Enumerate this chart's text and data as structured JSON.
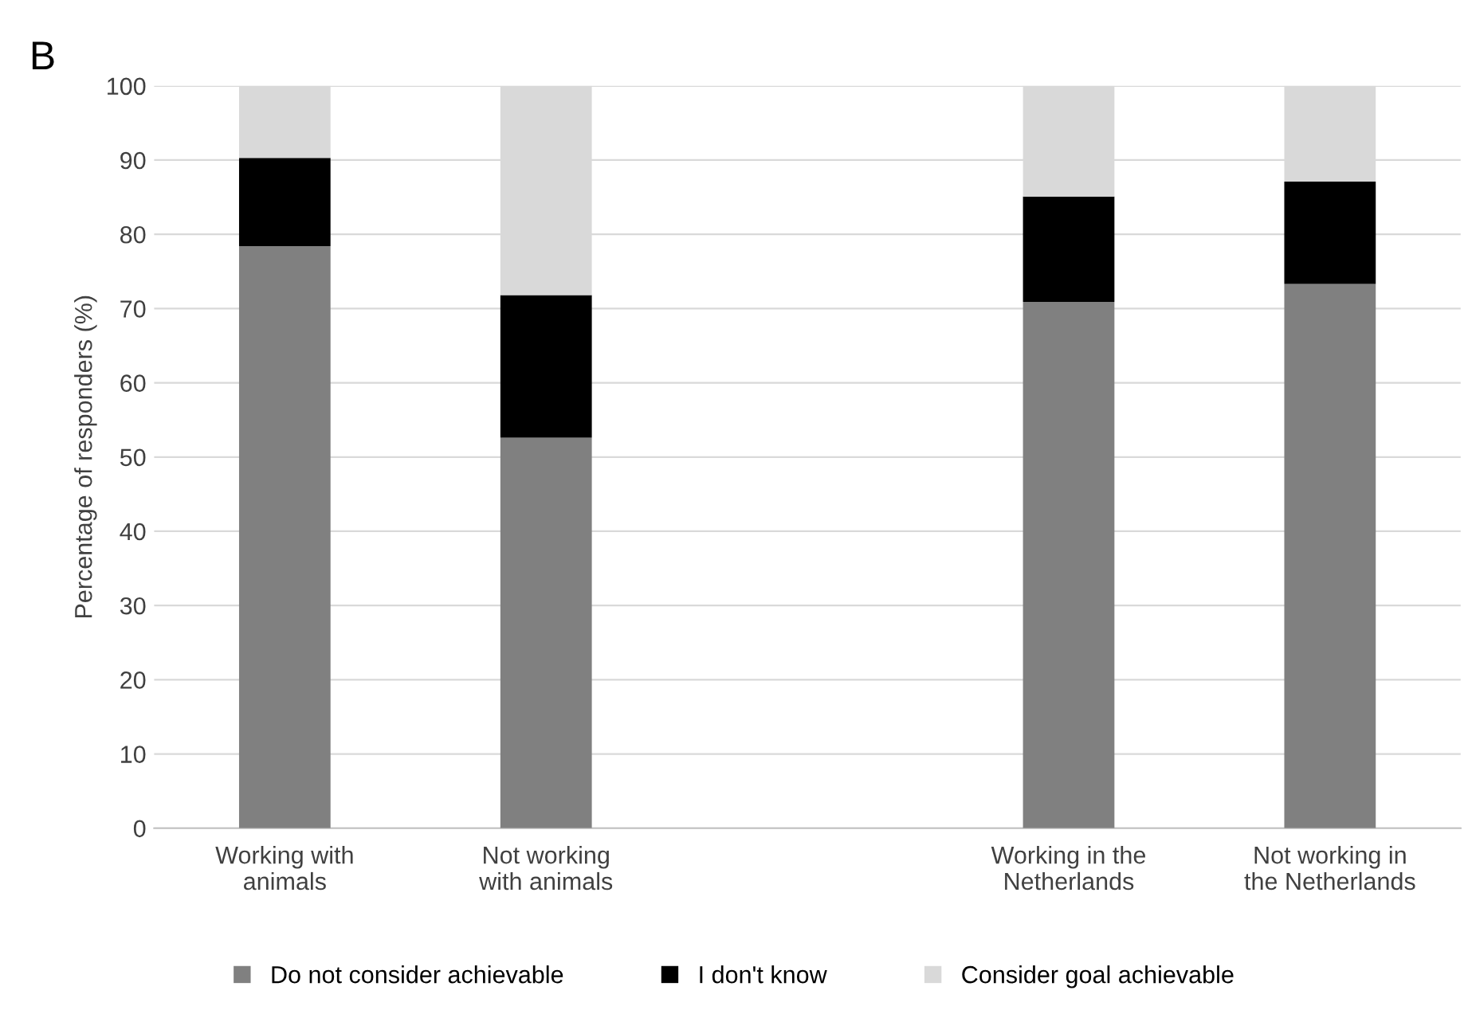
{
  "chart_data": {
    "type": "bar",
    "title": "B",
    "ylabel": "Percentage of responders (%)",
    "categories": [
      "Working with\nanimals",
      "Not working\nwith animals",
      null,
      "Working in the\nNetherlands",
      "Not working in\nthe Netherlands"
    ],
    "stacked": true,
    "series": [
      {
        "name": "Do not consider achievable",
        "color": "#808080",
        "values": [
          78.4,
          52.6,
          null,
          70.9,
          73.3
        ]
      },
      {
        "name": "I don't know",
        "color": "#000000",
        "values": [
          11.9,
          19.2,
          null,
          14.2,
          13.8
        ]
      },
      {
        "name": "Consider goal achievable",
        "color": "#d9d9d9",
        "values": [
          9.7,
          28.2,
          null,
          14.9,
          12.9
        ]
      }
    ],
    "ylim": [
      0,
      100
    ],
    "yticks": [
      0,
      10,
      20,
      30,
      40,
      50,
      60,
      70,
      80,
      90,
      100
    ],
    "grid": "y",
    "legend": "bottom"
  }
}
